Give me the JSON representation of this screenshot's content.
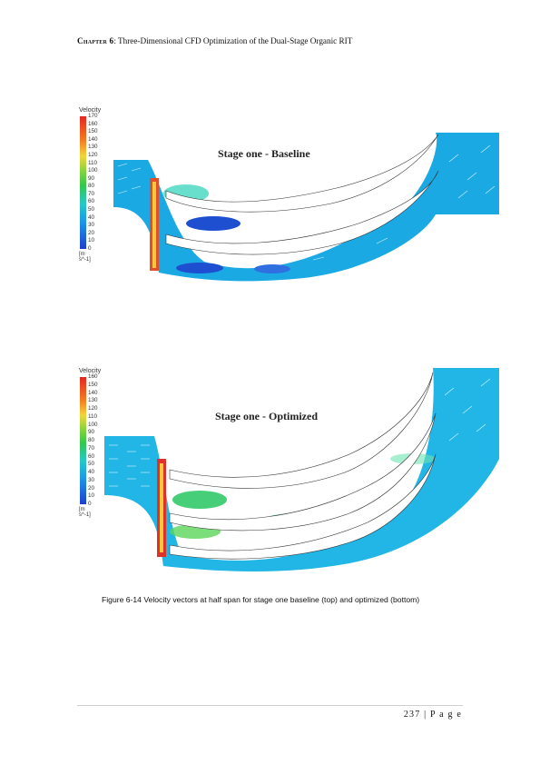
{
  "header": {
    "chapter": "Chapter 6",
    "title": ": Three-Dimensional CFD Optimization of the Dual-Stage Organic RIT"
  },
  "figures": [
    {
      "label": "Stage one - Baseline",
      "legend_title": "Velocity",
      "legend_ticks": [
        "170",
        "160",
        "150",
        "140",
        "130",
        "120",
        "110",
        "100",
        "90",
        "80",
        "70",
        "60",
        "50",
        "40",
        "30",
        "20",
        "10",
        "0"
      ],
      "legend_unit": "[m s^-1]"
    },
    {
      "label": "Stage one - Optimized",
      "legend_title": "Velocity",
      "legend_ticks": [
        "160",
        "150",
        "140",
        "130",
        "120",
        "110",
        "100",
        "90",
        "80",
        "70",
        "60",
        "50",
        "40",
        "30",
        "20",
        "10",
        "0"
      ],
      "legend_unit": "[m s^-1]"
    }
  ],
  "caption": "Figure 6-14 Velocity vectors at half span for stage one baseline (top) and optimized (bottom)",
  "footer": {
    "page_number": "237",
    "page_label": "P a g e"
  }
}
